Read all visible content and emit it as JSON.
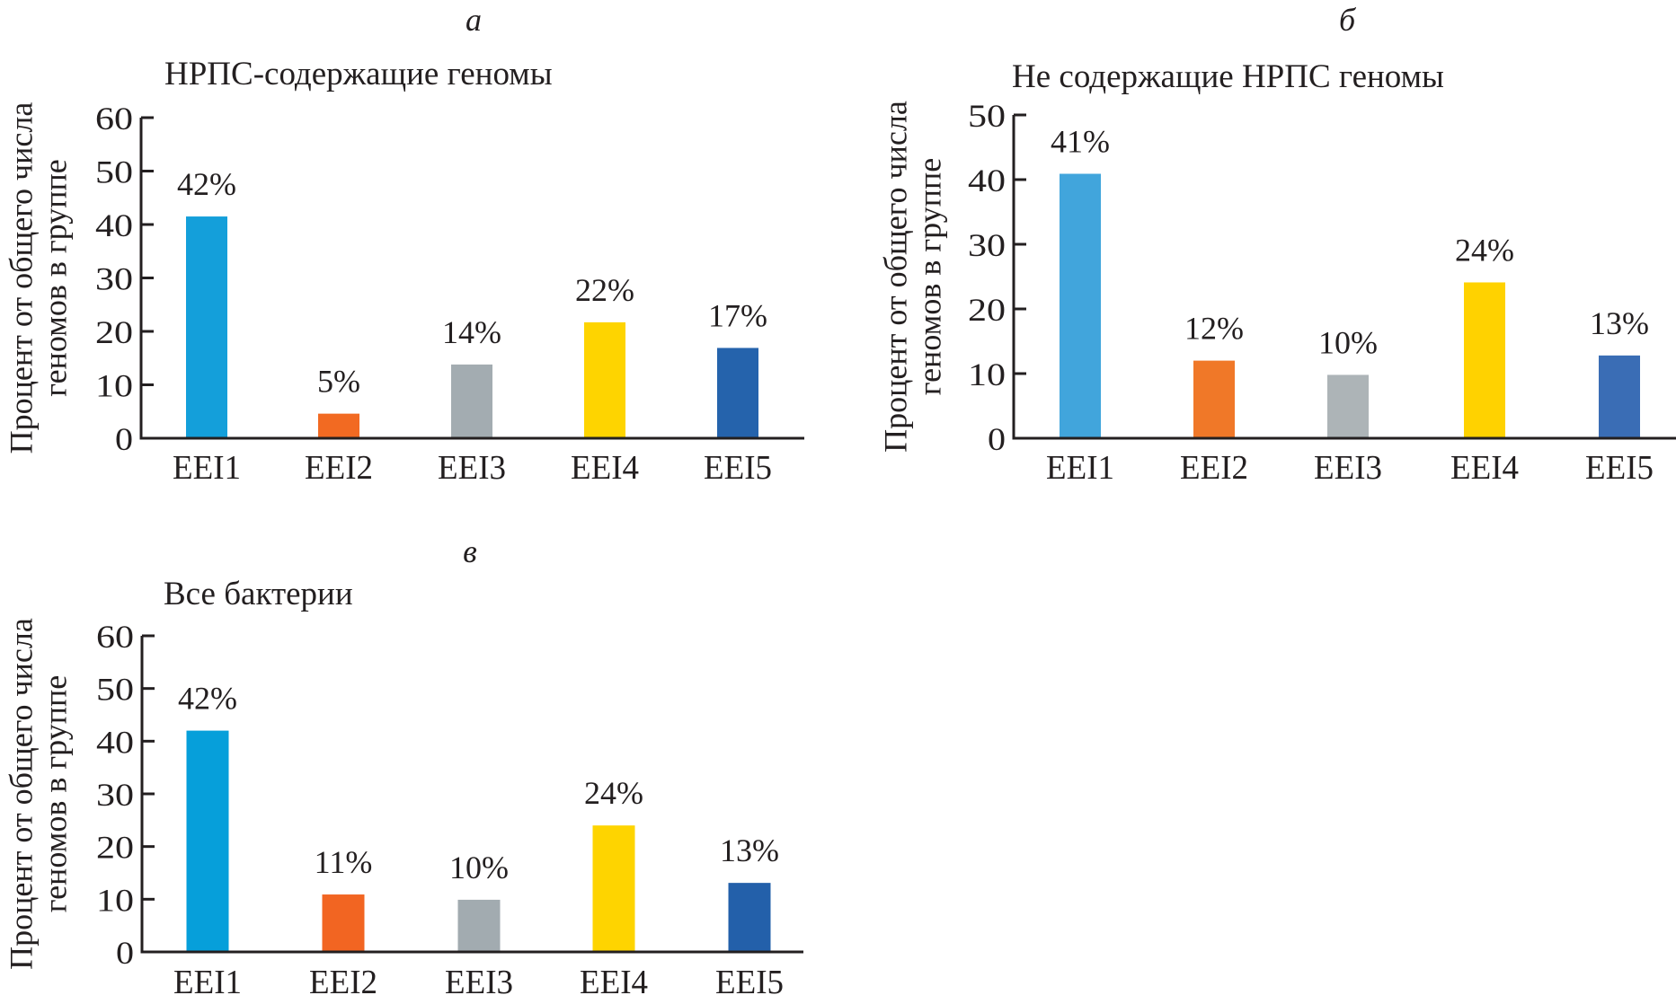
{
  "figure": {
    "panels": [
      "a",
      "b",
      "c"
    ]
  },
  "chart_data": [
    {
      "id": "a",
      "type": "bar",
      "panel_letter": "а",
      "title": "НРПС-содержащие геномы",
      "ylabel_lines": [
        "Процент от общего числа",
        "геномов в группе"
      ],
      "xlabel": "",
      "categories": [
        "EEI1",
        "EEI2",
        "EEI3",
        "EEI4",
        "EEI5"
      ],
      "values": [
        41.5,
        4.6,
        13.8,
        21.7,
        16.9
      ],
      "data_labels": [
        "42%",
        "5%",
        "14%",
        "22%",
        "17%"
      ],
      "colors": [
        "#149fda",
        "#f26a22",
        "#a3acb1",
        "#fed400",
        "#2563ac"
      ],
      "ylim": [
        0,
        60
      ],
      "yticks": [
        "0",
        "10",
        "20",
        "30",
        "40",
        "50",
        "60"
      ],
      "grid": false,
      "legend": "none"
    },
    {
      "id": "b",
      "type": "bar",
      "panel_letter": "б",
      "title": "Не содержащие НРПС геномы",
      "ylabel_lines": [
        "Процент от общего числа",
        "геномов в группе"
      ],
      "xlabel": "",
      "categories": [
        "EEI1",
        "EEI2",
        "EEI3",
        "EEI4",
        "EEI5"
      ],
      "values": [
        40.9,
        12.0,
        9.8,
        24.1,
        12.8
      ],
      "data_labels": [
        "41%",
        "12%",
        "10%",
        "24%",
        "13%"
      ],
      "colors": [
        "#41a5dc",
        "#f07828",
        "#adb4b7",
        "#ffd200",
        "#3a6db5"
      ],
      "ylim": [
        0,
        50
      ],
      "yticks": [
        "0",
        "10",
        "20",
        "30",
        "40",
        "50"
      ],
      "grid": false,
      "legend": "none"
    },
    {
      "id": "c",
      "type": "bar",
      "panel_letter": "в",
      "title": "Все бактерии",
      "ylabel_lines": [
        "Процент от общего числа",
        "геномов в группе"
      ],
      "xlabel": "",
      "categories": [
        "EEI1",
        "EEI2",
        "EEI3",
        "EEI4",
        "EEI5"
      ],
      "values": [
        42.0,
        10.9,
        9.9,
        24.0,
        13.1
      ],
      "data_labels": [
        "42%",
        "11%",
        "10%",
        "24%",
        "13%"
      ],
      "colors": [
        "#069fda",
        "#f26522",
        "#a2abb0",
        "#fed400",
        "#2360aa"
      ],
      "ylim": [
        0,
        60
      ],
      "yticks": [
        "0",
        "10",
        "20",
        "30",
        "40",
        "50",
        "60"
      ],
      "grid": false,
      "legend": "none"
    }
  ]
}
